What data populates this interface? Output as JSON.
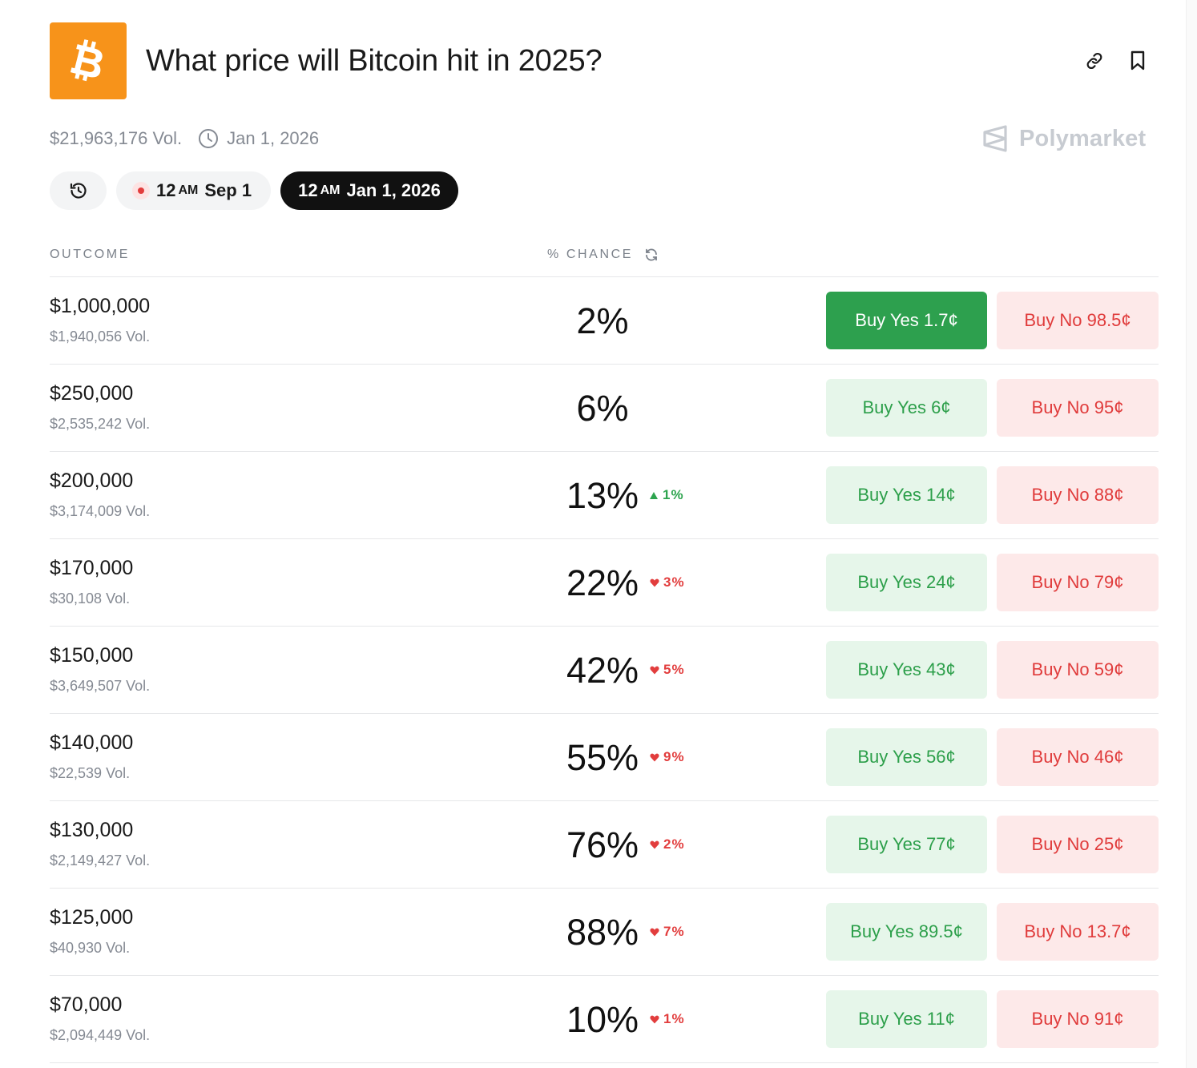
{
  "header": {
    "title": "What price will Bitcoin hit in 2025?",
    "logo_icon": "bitcoin-logo-icon",
    "logo_color": "#f7931a",
    "actions": [
      {
        "name": "link-icon"
      },
      {
        "name": "bookmark-icon"
      }
    ]
  },
  "meta": {
    "volume": "$21,963,176 Vol.",
    "end_date": "Jan 1, 2026",
    "brand": "Polymarket"
  },
  "filters": {
    "history_icon": "history-icon",
    "live": {
      "hour": "12",
      "ampm": "AM",
      "date": "Sep 1"
    },
    "active": {
      "hour": "12",
      "ampm": "AM",
      "date": "Jan 1, 2026"
    }
  },
  "table": {
    "outcome_header": "OUTCOME",
    "chance_header": "% CHANCE",
    "rows": [
      {
        "price": "$1,000,000",
        "vol": "$1,940,056 Vol.",
        "chance": "2%",
        "delta": "",
        "dir": "",
        "yes": "Buy Yes 1.7¢",
        "no": "Buy No 98.5¢",
        "yes_primary": true
      },
      {
        "price": "$250,000",
        "vol": "$2,535,242 Vol.",
        "chance": "6%",
        "delta": "",
        "dir": "",
        "yes": "Buy Yes 6¢",
        "no": "Buy No 95¢",
        "yes_primary": false
      },
      {
        "price": "$200,000",
        "vol": "$3,174,009 Vol.",
        "chance": "13%",
        "delta": "1%",
        "dir": "up",
        "yes": "Buy Yes 14¢",
        "no": "Buy No 88¢",
        "yes_primary": false
      },
      {
        "price": "$170,000",
        "vol": "$30,108 Vol.",
        "chance": "22%",
        "delta": "3%",
        "dir": "down",
        "yes": "Buy Yes 24¢",
        "no": "Buy No 79¢",
        "yes_primary": false
      },
      {
        "price": "$150,000",
        "vol": "$3,649,507 Vol.",
        "chance": "42%",
        "delta": "5%",
        "dir": "down",
        "yes": "Buy Yes 43¢",
        "no": "Buy No 59¢",
        "yes_primary": false
      },
      {
        "price": "$140,000",
        "vol": "$22,539 Vol.",
        "chance": "55%",
        "delta": "9%",
        "dir": "down",
        "yes": "Buy Yes 56¢",
        "no": "Buy No 46¢",
        "yes_primary": false
      },
      {
        "price": "$130,000",
        "vol": "$2,149,427 Vol.",
        "chance": "76%",
        "delta": "2%",
        "dir": "down",
        "yes": "Buy Yes 77¢",
        "no": "Buy No 25¢",
        "yes_primary": false
      },
      {
        "price": "$125,000",
        "vol": "$40,930 Vol.",
        "chance": "88%",
        "delta": "7%",
        "dir": "down",
        "yes": "Buy Yes 89.5¢",
        "no": "Buy No 13.7¢",
        "yes_primary": false
      },
      {
        "price": "$70,000",
        "vol": "$2,094,449 Vol.",
        "chance": "10%",
        "delta": "1%",
        "dir": "down",
        "yes": "Buy Yes 11¢",
        "no": "Buy No 91¢",
        "yes_primary": false
      }
    ]
  },
  "colors": {
    "yes_primary": "#2da04e",
    "yes_soft": "#e6f6ea",
    "no_soft": "#fde9e9",
    "up": "#2da44e",
    "down": "#e23d3d"
  }
}
